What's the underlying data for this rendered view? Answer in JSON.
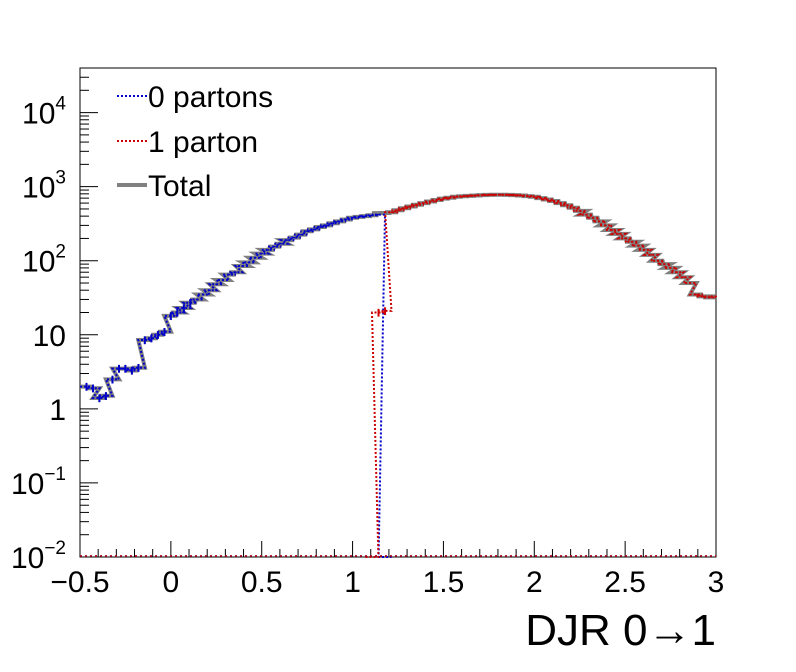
{
  "chart_data": {
    "type": "line",
    "xlabel": "DJR 0→1",
    "ylabel": "",
    "xlim": [
      -0.5,
      3.0
    ],
    "ylim": [
      0.01,
      40000
    ],
    "y_scale": "log",
    "legend_position": "top-left",
    "x_ticks": [
      "−0.5",
      "0",
      "0.5",
      "1",
      "1.5",
      "2",
      "2.5",
      "3"
    ],
    "x_tick_values": [
      -0.5,
      0,
      0.5,
      1,
      1.5,
      2,
      2.5,
      3
    ],
    "y_ticks": [
      {
        "value": 0.01,
        "base": "10",
        "exp": "−2"
      },
      {
        "value": 0.1,
        "base": "10",
        "exp": "−1"
      },
      {
        "value": 1,
        "base": "1",
        "exp": ""
      },
      {
        "value": 10,
        "base": "10",
        "exp": ""
      },
      {
        "value": 100,
        "base": "10",
        "exp": "2"
      },
      {
        "value": 1000,
        "base": "10",
        "exp": "3"
      },
      {
        "value": 10000,
        "base": "10",
        "exp": "4"
      }
    ],
    "bin_width": 0.0714,
    "series": [
      {
        "name": "0 partons",
        "color": "#0000cc",
        "style": "dotted",
        "x": [
          -0.5,
          -0.464,
          -0.429,
          -0.393,
          -0.357,
          -0.321,
          -0.286,
          -0.25,
          -0.214,
          -0.179,
          -0.143,
          -0.107,
          -0.071,
          -0.036,
          0.0,
          0.036,
          0.071,
          0.107,
          0.143,
          0.179,
          0.214,
          0.25,
          0.286,
          0.321,
          0.357,
          0.393,
          0.429,
          0.464,
          0.5,
          0.536,
          0.571,
          0.607,
          0.643,
          0.679,
          0.714,
          0.75,
          0.786,
          0.821,
          0.857,
          0.893,
          0.929,
          0.964,
          1.0,
          1.036,
          1.071,
          1.107,
          1.143
        ],
        "values": [
          2.0,
          1.9,
          1.4,
          1.5,
          2.5,
          3.5,
          3.5,
          3.3,
          3.6,
          8.5,
          9.0,
          10.0,
          11.0,
          18.0,
          20.0,
          23.0,
          27.0,
          30.0,
          35.0,
          40.0,
          48.0,
          55.0,
          65.0,
          70.0,
          85.0,
          95.0,
          110.0,
          125.0,
          140.0,
          155.0,
          170.0,
          190.0,
          205.0,
          225.0,
          250.0,
          265.0,
          285.0,
          300.0,
          320.0,
          340.0,
          360.0,
          380.0,
          390.0,
          400.0,
          410.0,
          420.0,
          0.01
        ]
      },
      {
        "name": "1 parton",
        "color": "#cc0000",
        "style": "dotted",
        "x": [
          1.071,
          1.107,
          1.143,
          1.179,
          1.214,
          1.25,
          1.286,
          1.321,
          1.357,
          1.393,
          1.429,
          1.464,
          1.5,
          1.536,
          1.571,
          1.607,
          1.643,
          1.679,
          1.714,
          1.75,
          1.786,
          1.821,
          1.857,
          1.893,
          1.929,
          1.964,
          2.0,
          2.036,
          2.071,
          2.107,
          2.143,
          2.179,
          2.214,
          2.25,
          2.286,
          2.321,
          2.357,
          2.393,
          2.429,
          2.464,
          2.5,
          2.536,
          2.571,
          2.607,
          2.643,
          2.679,
          2.714,
          2.75,
          2.786,
          2.821,
          2.857,
          2.893,
          2.929,
          2.964
        ],
        "values": [
          0.01,
          20.0,
          21.0,
          450.0,
          480.0,
          510.0,
          540.0,
          570.0,
          600.0,
          630.0,
          660.0,
          690.0,
          710.0,
          730.0,
          740.0,
          750.0,
          760.0,
          770.0,
          775.0,
          780.0,
          780.0,
          775.0,
          770.0,
          760.0,
          745.0,
          730.0,
          700.0,
          670.0,
          640.0,
          600.0,
          560.0,
          520.0,
          470.0,
          420.0,
          380.0,
          340.0,
          300.0,
          260.0,
          230.0,
          200.0,
          180.0,
          160.0,
          140.0,
          120.0,
          100.0,
          90.0,
          80.0,
          70.0,
          60.0,
          50.0,
          35.0,
          33.0,
          32.0,
          33.0
        ]
      },
      {
        "name": "Total",
        "color": "#808080",
        "style": "solid",
        "x": [
          -0.5,
          -0.464,
          -0.429,
          -0.393,
          -0.357,
          -0.321,
          -0.286,
          -0.25,
          -0.214,
          -0.179,
          -0.143,
          -0.107,
          -0.071,
          -0.036,
          0.0,
          0.036,
          0.071,
          0.107,
          0.143,
          0.179,
          0.214,
          0.25,
          0.286,
          0.321,
          0.357,
          0.393,
          0.429,
          0.464,
          0.5,
          0.536,
          0.571,
          0.607,
          0.643,
          0.679,
          0.714,
          0.75,
          0.786,
          0.821,
          0.857,
          0.893,
          0.929,
          0.964,
          1.0,
          1.036,
          1.071,
          1.107,
          1.143,
          1.179,
          1.214,
          1.25,
          1.286,
          1.321,
          1.357,
          1.393,
          1.429,
          1.464,
          1.5,
          1.536,
          1.571,
          1.607,
          1.643,
          1.679,
          1.714,
          1.75,
          1.786,
          1.821,
          1.857,
          1.893,
          1.929,
          1.964,
          2.0,
          2.036,
          2.071,
          2.107,
          2.143,
          2.179,
          2.214,
          2.25,
          2.286,
          2.321,
          2.357,
          2.393,
          2.429,
          2.464,
          2.5,
          2.536,
          2.571,
          2.607,
          2.643,
          2.679,
          2.714,
          2.75,
          2.786,
          2.821,
          2.857,
          2.893,
          2.929,
          2.964
        ],
        "values": [
          2.0,
          1.9,
          1.4,
          1.5,
          2.5,
          3.5,
          3.5,
          3.3,
          3.6,
          8.5,
          9.0,
          10.0,
          11.0,
          18.0,
          20.0,
          23.0,
          27.0,
          30.0,
          35.0,
          40.0,
          48.0,
          55.0,
          65.0,
          70.0,
          85.0,
          95.0,
          110.0,
          125.0,
          140.0,
          155.0,
          170.0,
          190.0,
          205.0,
          225.0,
          250.0,
          265.0,
          285.0,
          300.0,
          320.0,
          340.0,
          360.0,
          380.0,
          390.0,
          400.0,
          410.0,
          440.0,
          441.0,
          450.0,
          480.0,
          510.0,
          540.0,
          570.0,
          600.0,
          630.0,
          660.0,
          690.0,
          710.0,
          730.0,
          740.0,
          750.0,
          760.0,
          770.0,
          775.0,
          780.0,
          780.0,
          775.0,
          770.0,
          760.0,
          745.0,
          730.0,
          700.0,
          670.0,
          640.0,
          600.0,
          560.0,
          520.0,
          470.0,
          420.0,
          380.0,
          340.0,
          300.0,
          260.0,
          230.0,
          200.0,
          180.0,
          160.0,
          140.0,
          120.0,
          100.0,
          90.0,
          80.0,
          70.0,
          60.0,
          50.0,
          35.0,
          33.0,
          32.0,
          33.0
        ]
      }
    ]
  }
}
